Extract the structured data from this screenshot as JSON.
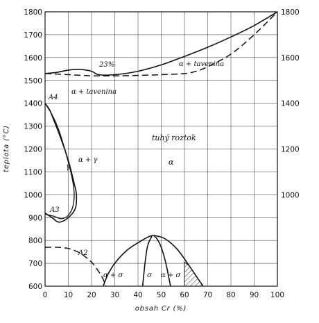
{
  "chart_data": {
    "type": "phase-diagram",
    "xlabel": "obsah Cr (%)",
    "ylabel": "teplota (°C)",
    "xlim": [
      0,
      100
    ],
    "ylim": [
      600,
      1800
    ],
    "x_ticks": [
      0,
      10,
      20,
      30,
      40,
      50,
      60,
      70,
      80,
      90,
      100
    ],
    "y_ticks_left": [
      600,
      700,
      800,
      900,
      1000,
      1100,
      1200,
      1300,
      1400,
      1500,
      1600,
      1700,
      1800
    ],
    "y_ticks_right": [
      1000,
      1200,
      1400,
      1600,
      1800
    ],
    "grid": true,
    "labels": {
      "pct23": "23%",
      "alpha_melt_upper": "α + tavenina",
      "alpha_melt_lower": "α + tavenina",
      "solid_solution": "tuhý roztok",
      "alpha": "α",
      "gamma": "γ",
      "alpha_gamma": "α + γ",
      "A4": "A4",
      "A3": "A3",
      "A2": "A2",
      "alpha_sigma_left": "α + σ",
      "sigma": "σ",
      "alpha_sigma_right": "α + σ"
    },
    "curves": {
      "liquidus": [
        [
          0,
          1530
        ],
        [
          5,
          1535
        ],
        [
          10,
          1545
        ],
        [
          15,
          1548
        ],
        [
          20,
          1540
        ],
        [
          23,
          1525
        ],
        [
          30,
          1525
        ],
        [
          40,
          1540
        ],
        [
          50,
          1568
        ],
        [
          60,
          1605
        ],
        [
          70,
          1645
        ],
        [
          80,
          1690
        ],
        [
          90,
          1740
        ],
        [
          100,
          1800
        ]
      ],
      "solidus": [
        [
          0,
          1530
        ],
        [
          10,
          1525
        ],
        [
          20,
          1520
        ],
        [
          23,
          1520
        ],
        [
          30,
          1520
        ],
        [
          40,
          1522
        ],
        [
          50,
          1525
        ],
        [
          60,
          1530
        ],
        [
          65,
          1540
        ],
        [
          70,
          1560
        ],
        [
          80,
          1615
        ],
        [
          90,
          1700
        ],
        [
          100,
          1800
        ]
      ],
      "gamma_loop_outer": [
        [
          0,
          1400
        ],
        [
          2,
          1370
        ],
        [
          4,
          1320
        ],
        [
          7,
          1240
        ],
        [
          10,
          1150
        ],
        [
          12.5,
          1050
        ],
        [
          13.5,
          1000
        ],
        [
          13,
          940
        ],
        [
          10,
          900
        ],
        [
          6,
          880
        ],
        [
          3,
          900
        ],
        [
          0,
          920
        ]
      ],
      "gamma_loop_inner": [
        [
          0,
          1400
        ],
        [
          3,
          1350
        ],
        [
          6,
          1280
        ],
        [
          9,
          1180
        ],
        [
          11.5,
          1080
        ],
        [
          12.5,
          1010
        ],
        [
          12,
          950
        ],
        [
          10,
          910
        ],
        [
          7,
          895
        ],
        [
          4,
          905
        ],
        [
          0,
          915
        ]
      ],
      "magnetic_A2": [
        [
          0,
          770
        ],
        [
          5,
          770
        ],
        [
          10,
          765
        ],
        [
          15,
          745
        ],
        [
          20,
          705
        ],
        [
          23,
          665
        ],
        [
          25,
          630
        ],
        [
          26,
          600
        ]
      ],
      "sigma_outer": [
        [
          25,
          600
        ],
        [
          27,
          650
        ],
        [
          30,
          700
        ],
        [
          35,
          755
        ],
        [
          40,
          790
        ],
        [
          45,
          818
        ],
        [
          48,
          820
        ],
        [
          52,
          805
        ],
        [
          57,
          760
        ],
        [
          62,
          690
        ],
        [
          66,
          630
        ],
        [
          68,
          600
        ]
      ],
      "sigma_left": [
        [
          42,
          600
        ],
        [
          43,
          700
        ],
        [
          44,
          770
        ],
        [
          45,
          800
        ],
        [
          46,
          818
        ]
      ],
      "sigma_right": [
        [
          54,
          600
        ],
        [
          52,
          700
        ],
        [
          50,
          770
        ],
        [
          48,
          810
        ],
        [
          47,
          818
        ]
      ],
      "hatched_region": [
        [
          60,
          600
        ],
        [
          60,
          705
        ],
        [
          62,
          690
        ],
        [
          66,
          630
        ],
        [
          68,
          600
        ]
      ]
    }
  }
}
